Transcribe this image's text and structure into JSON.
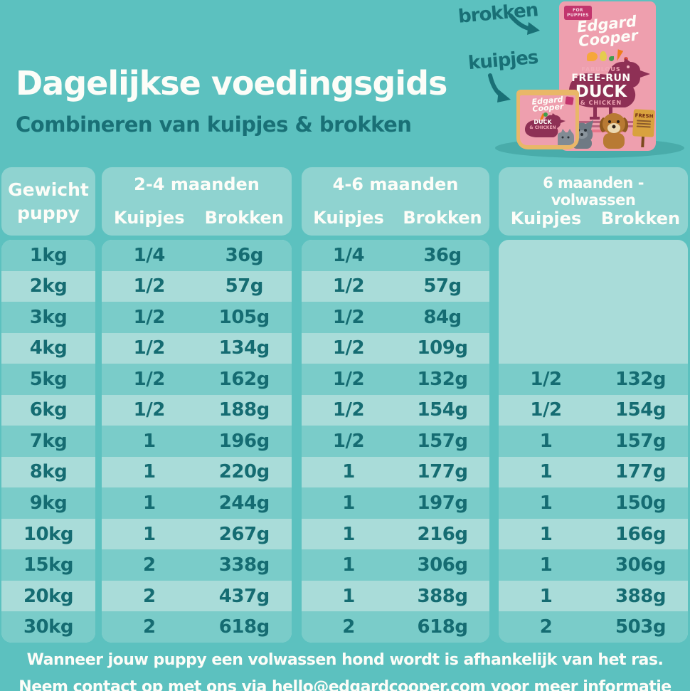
{
  "header": {
    "title": "Dagelijkse voedingsgids",
    "subtitle": "Combineren van kuipjes & brokken"
  },
  "products": {
    "brokken_label": "brokken",
    "kuipjes_label": "kuipjes",
    "bag": {
      "tag_line1": "FOR",
      "tag_line2": "PUPPIES",
      "brand_line1": "Edgard",
      "brand_line2": "Cooper",
      "line_fabulous": "FABULOUS",
      "line_freerun": "FREE-RUN",
      "line_duck": "DUCK",
      "line_chicken": "& CHICKEN",
      "fresh_label": "FRESH"
    },
    "tub": {
      "brand_line1": "Edgard",
      "brand_line2": "Cooper",
      "line_duck": "DUCK",
      "line_chicken": "& CHICKEN"
    }
  },
  "table": {
    "weight_header_line1": "Gewicht",
    "weight_header_line2": "puppy",
    "weights": [
      "1kg",
      "2kg",
      "3kg",
      "4kg",
      "5kg",
      "6kg",
      "7kg",
      "8kg",
      "9kg",
      "10kg",
      "15kg",
      "20kg",
      "30kg"
    ],
    "groups": [
      {
        "title": "2-4 maanden",
        "col1": "Kuipjes",
        "col2": "Brokken",
        "kuipjes": [
          "1/4",
          "1/2",
          "1/2",
          "1/2",
          "1/2",
          "1/2",
          "1",
          "1",
          "1",
          "1",
          "2",
          "2",
          "2"
        ],
        "brokken": [
          "36g",
          "57g",
          "105g",
          "134g",
          "162g",
          "188g",
          "196g",
          "220g",
          "244g",
          "267g",
          "338g",
          "437g",
          "618g"
        ]
      },
      {
        "title": "4-6 maanden",
        "col1": "Kuipjes",
        "col2": "Brokken",
        "kuipjes": [
          "1/4",
          "1/2",
          "1/2",
          "1/2",
          "1/2",
          "1/2",
          "1/2",
          "1",
          "1",
          "1",
          "1",
          "1",
          "2"
        ],
        "brokken": [
          "36g",
          "57g",
          "84g",
          "109g",
          "132g",
          "154g",
          "157g",
          "177g",
          "197g",
          "216g",
          "306g",
          "388g",
          "618g"
        ]
      },
      {
        "title": "6 maanden - volwassen",
        "col1": "Kuipjes",
        "col2": "Brokken",
        "kuipjes": [
          "",
          "",
          "",
          "",
          "1/2",
          "1/2",
          "1",
          "1",
          "1",
          "1",
          "1",
          "1",
          "2"
        ],
        "brokken": [
          "",
          "",
          "",
          "",
          "132g",
          "154g",
          "157g",
          "177g",
          "150g",
          "166g",
          "306g",
          "388g",
          "503g"
        ]
      }
    ]
  },
  "footer": {
    "line1": "Wanneer jouw puppy een volwassen hond wordt is afhankelijk van het ras.",
    "line2": "Neem contact op met ons via hello@edgardcooper.com voor meer informatie"
  },
  "colors": {
    "background": "#5cc1bf",
    "panel_header": "#8fd3d0",
    "row_dark": "#7accc9",
    "row_light": "#a9dcd9",
    "text_dark": "#156c72",
    "text_white": "#fdfdf8",
    "bag_pink": "#ee9fae",
    "duck_maroon": "#8e3055",
    "tag_magenta": "#c2356d",
    "tub_gold": "#e9b768",
    "sign_gold": "#d9a23e"
  }
}
